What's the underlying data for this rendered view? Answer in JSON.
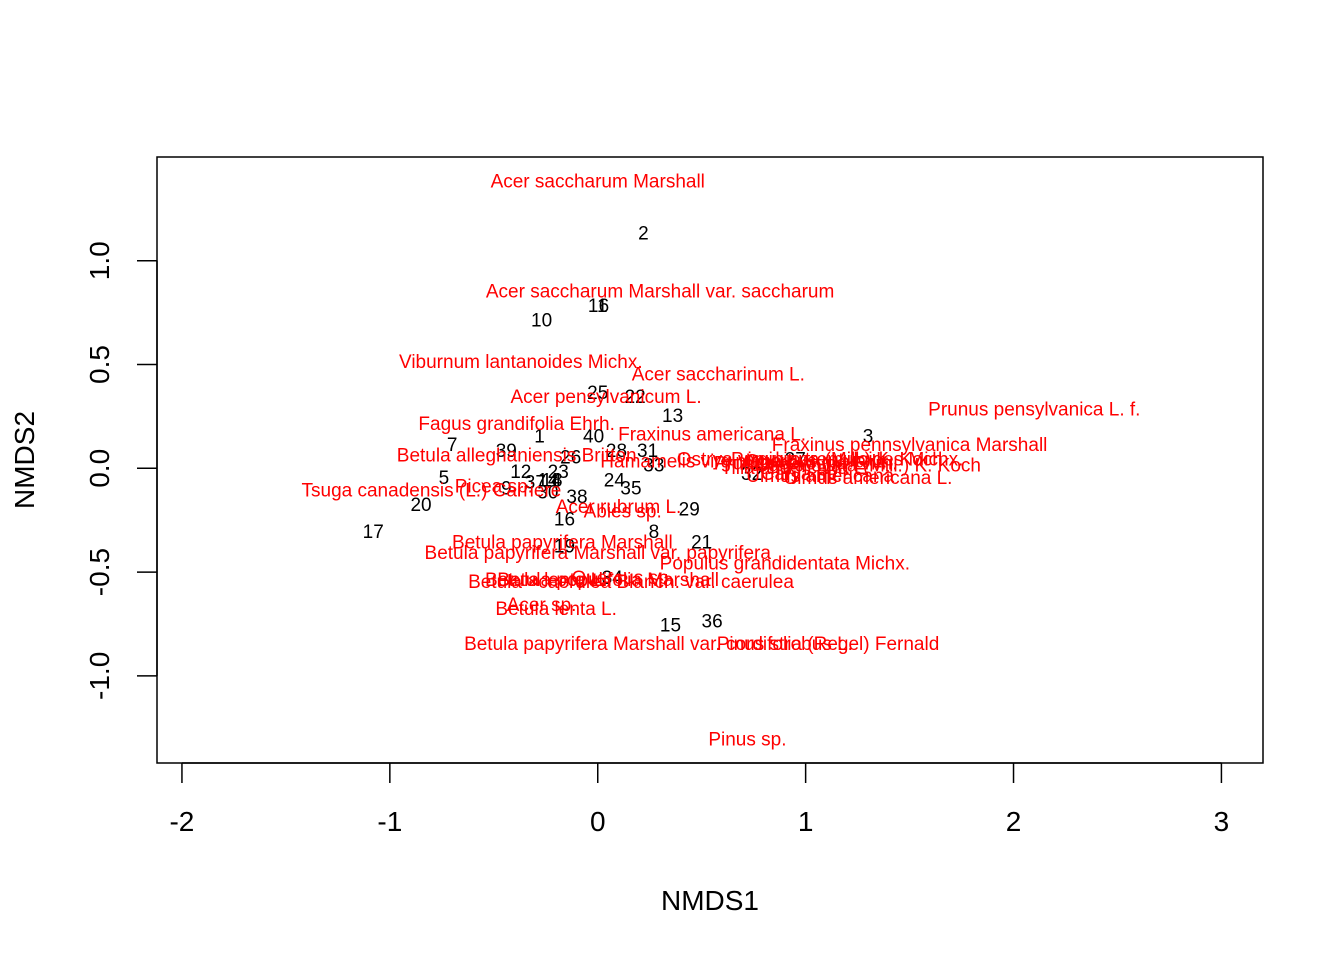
{
  "chart_data": {
    "type": "scatter",
    "title": "",
    "xlabel": "NMDS1",
    "ylabel": "NMDS2",
    "xlim": [
      -2.12,
      3.2
    ],
    "ylim": [
      -1.42,
      1.5
    ],
    "x_ticks": [
      -2,
      -1,
      0,
      1,
      2,
      3
    ],
    "y_ticks": [
      -1.0,
      -0.5,
      0.0,
      0.5,
      1.0
    ],
    "x_tick_labels": [
      "-2",
      "-1",
      "0",
      "1",
      "2",
      "3"
    ],
    "y_tick_labels": [
      "-1.0",
      "-0.5",
      "0.0",
      "0.5",
      "1.0"
    ],
    "site_color": "#000000",
    "species_color": "#ff0000",
    "sites": [
      {
        "label": "1",
        "x": -0.28,
        "y": 0.15
      },
      {
        "label": "2",
        "x": 0.22,
        "y": 1.13
      },
      {
        "label": "3",
        "x": 1.3,
        "y": 0.15
      },
      {
        "label": "4",
        "x": -0.2,
        "y": -0.06
      },
      {
        "label": "5",
        "x": -0.74,
        "y": -0.05
      },
      {
        "label": "6",
        "x": 0.03,
        "y": 0.78
      },
      {
        "label": "7",
        "x": -0.7,
        "y": 0.11
      },
      {
        "label": "8",
        "x": 0.27,
        "y": -0.31
      },
      {
        "label": "9",
        "x": -0.44,
        "y": -0.1
      },
      {
        "label": "10",
        "x": -0.27,
        "y": 0.71
      },
      {
        "label": "11",
        "x": 0.0,
        "y": 0.78
      },
      {
        "label": "12",
        "x": -0.37,
        "y": -0.02
      },
      {
        "label": "13",
        "x": 0.36,
        "y": 0.25
      },
      {
        "label": "14",
        "x": -0.24,
        "y": -0.06
      },
      {
        "label": "15",
        "x": 0.35,
        "y": -0.76
      },
      {
        "label": "16",
        "x": -0.16,
        "y": -0.25
      },
      {
        "label": "17",
        "x": -1.08,
        "y": -0.31
      },
      {
        "label": "18",
        "x": -0.22,
        "y": -0.06
      },
      {
        "label": "19",
        "x": -0.16,
        "y": -0.38
      },
      {
        "label": "20",
        "x": -0.85,
        "y": -0.18
      },
      {
        "label": "21",
        "x": 0.5,
        "y": -0.36
      },
      {
        "label": "22",
        "x": 0.18,
        "y": 0.34
      },
      {
        "label": "23",
        "x": -0.19,
        "y": -0.02
      },
      {
        "label": "24",
        "x": 0.08,
        "y": -0.06
      },
      {
        "label": "25",
        "x": 0.0,
        "y": 0.36
      },
      {
        "label": "26",
        "x": -0.13,
        "y": 0.05
      },
      {
        "label": "27",
        "x": 0.95,
        "y": 0.04
      },
      {
        "label": "28",
        "x": 0.09,
        "y": 0.08
      },
      {
        "label": "29",
        "x": 0.44,
        "y": -0.2
      },
      {
        "label": "30",
        "x": -0.24,
        "y": -0.12
      },
      {
        "label": "31",
        "x": 0.24,
        "y": 0.08
      },
      {
        "label": "32",
        "x": 0.74,
        "y": -0.03
      },
      {
        "label": "33",
        "x": 0.27,
        "y": 0.01
      },
      {
        "label": "34",
        "x": 0.07,
        "y": -0.53
      },
      {
        "label": "35",
        "x": 0.16,
        "y": -0.1
      },
      {
        "label": "36",
        "x": 0.55,
        "y": -0.74
      },
      {
        "label": "37",
        "x": -0.3,
        "y": -0.07
      },
      {
        "label": "38",
        "x": -0.1,
        "y": -0.14
      },
      {
        "label": "39",
        "x": -0.44,
        "y": 0.08
      },
      {
        "label": "40",
        "x": -0.02,
        "y": 0.15
      }
    ],
    "species": [
      {
        "label": "Acer saccharum Marshall",
        "x": 0.0,
        "y": 1.38
      },
      {
        "label": "Acer saccharum Marshall var. saccharum",
        "x": 0.3,
        "y": 0.85
      },
      {
        "label": "Viburnum lantanoides Michx.",
        "x": -0.37,
        "y": 0.51
      },
      {
        "label": "Acer saccharinum L.",
        "x": 0.58,
        "y": 0.45
      },
      {
        "label": "Acer pensylvanicum L.",
        "x": 0.04,
        "y": 0.34
      },
      {
        "label": "Prunus pensylvanica L. f.",
        "x": 2.1,
        "y": 0.28
      },
      {
        "label": "Fagus grandifolia Ehrh.",
        "x": -0.39,
        "y": 0.21
      },
      {
        "label": "Fraxinus americana L.",
        "x": 0.55,
        "y": 0.16
      },
      {
        "label": "Fraxinus pennsylvanica Marshall",
        "x": 1.5,
        "y": 0.11
      },
      {
        "label": "Betula alleghaniensis Britton",
        "x": -0.39,
        "y": 0.06
      },
      {
        "label": "Populus tremuloides Michx.",
        "x": 1.2,
        "y": 0.04
      },
      {
        "label": "Hamamelis virginiana L.",
        "x": 0.5,
        "y": 0.03
      },
      {
        "label": "Carya ovata (Mill.) K. Koch",
        "x": 1.3,
        "y": 0.01
      },
      {
        "label": "Tilia americana L.",
        "x": 0.95,
        "y": 0.0
      },
      {
        "label": "Prunus serotina Ehrh.",
        "x": 1.0,
        "y": 0.02
      },
      {
        "label": "Quercus rubra L.",
        "x": 1.05,
        "y": 0.03
      },
      {
        "label": "Ostrya virginiana (Mill.) K. Koch",
        "x": 1.02,
        "y": 0.04
      },
      {
        "label": "Carya sp.",
        "x": 0.98,
        "y": -0.03
      },
      {
        "label": "Ulmus americana L.",
        "x": 1.3,
        "y": -0.05
      },
      {
        "label": "Ulmus americana",
        "x": 1.07,
        "y": -0.04
      },
      {
        "label": "Tsuga canadensis (L.) Carriere",
        "x": -0.8,
        "y": -0.11
      },
      {
        "label": "Picea sp.",
        "x": -0.5,
        "y": -0.09
      },
      {
        "label": "Acer rubrum L.",
        "x": 0.1,
        "y": -0.19
      },
      {
        "label": "Abies sp.",
        "x": 0.12,
        "y": -0.21
      },
      {
        "label": "Betula papyrifera Marshall",
        "x": -0.17,
        "y": -0.36
      },
      {
        "label": "Betula papyrifera Marshall var. papyrifera",
        "x": 0.0,
        "y": -0.41
      },
      {
        "label": "Populus grandidentata Michx.",
        "x": 0.9,
        "y": -0.46
      },
      {
        "label": "Betula ×caerulea Blanch. var. caerulea",
        "x": 0.16,
        "y": -0.55
      },
      {
        "label": "Betula lenta L.",
        "x": -0.25,
        "y": -0.54
      },
      {
        "label": "Quercus sp.",
        "x": 0.12,
        "y": -0.53
      },
      {
        "label": "Betula populifolia Marshall",
        "x": 0.05,
        "y": -0.54
      },
      {
        "label": "Acer sp.",
        "x": -0.27,
        "y": -0.66
      },
      {
        "label": "Betula lenta L.",
        "x": -0.2,
        "y": -0.68
      },
      {
        "label": "Betula papyrifera Marshall var. cordifolia (Regel) Fernald",
        "x": 0.5,
        "y": -0.85
      },
      {
        "label": "Pinus strobus L.",
        "x": 0.9,
        "y": -0.85
      },
      {
        "label": "Pinus sp.",
        "x": 0.72,
        "y": -1.31
      }
    ]
  }
}
